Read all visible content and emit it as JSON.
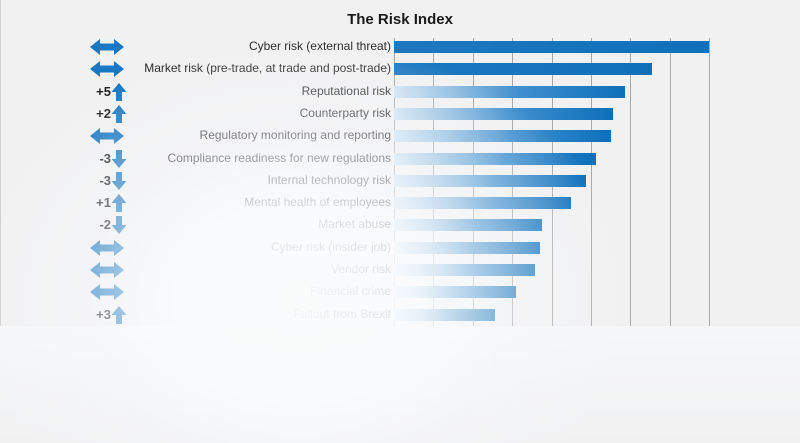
{
  "chart_data": {
    "type": "bar",
    "orientation": "horizontal",
    "title": "The Risk Index",
    "xlabel": "",
    "ylabel": "",
    "xlim": [
      0,
      8
    ],
    "grid": true,
    "gridlines_x": [
      0,
      1,
      2,
      3,
      4,
      5,
      6,
      7,
      8
    ],
    "categories": [
      "Cyber risk (external threat)",
      "Market risk (pre-trade, at trade and post-trade)",
      "Reputational risk",
      "Counterparty risk",
      "Regulatory monitoring and reporting",
      "Compliance readiness for new regulations",
      "Internal technology risk",
      "Mental health of employees",
      "Market abuse",
      "Cyber risk (insider job)",
      "Vendor risk",
      "Financial crime",
      "Fallout from Brexit"
    ],
    "values": [
      8.0,
      6.55,
      5.87,
      5.56,
      5.51,
      5.13,
      4.87,
      4.49,
      3.76,
      3.71,
      3.58,
      3.1,
      2.56
    ],
    "rank_change": [
      "0",
      "0",
      "+5",
      "+2",
      "0",
      "-3",
      "-3",
      "+1",
      "-2",
      "0",
      "0",
      "0",
      "+3"
    ],
    "annotations": "Left column shows rank movement: double-headed arrow = unchanged, up arrow = moved up, down arrow = moved down"
  },
  "chart": {
    "title": "The Risk Index",
    "rows": [
      {
        "label": "Cyber risk (external threat)",
        "change": "",
        "dir": "same",
        "value": 8.0
      },
      {
        "label": "Market risk (pre-trade, at trade and post-trade)",
        "change": "",
        "dir": "same",
        "value": 6.55
      },
      {
        "label": "Reputational risk",
        "change": "+5",
        "dir": "up",
        "value": 5.87
      },
      {
        "label": "Counterparty risk",
        "change": "+2",
        "dir": "up",
        "value": 5.56
      },
      {
        "label": "Regulatory monitoring and reporting",
        "change": "",
        "dir": "same",
        "value": 5.51
      },
      {
        "label": "Compliance readiness for new regulations",
        "change": "-3",
        "dir": "down",
        "value": 5.13
      },
      {
        "label": "Internal technology risk",
        "change": "-3",
        "dir": "down",
        "value": 4.87
      },
      {
        "label": "Mental health of employees",
        "change": "+1",
        "dir": "up",
        "value": 4.49
      },
      {
        "label": "Market abuse",
        "change": "-2",
        "dir": "down",
        "value": 3.76
      },
      {
        "label": "Cyber risk (insider job)",
        "change": "",
        "dir": "same",
        "value": 3.71
      },
      {
        "label": "Vendor risk",
        "change": "",
        "dir": "same",
        "value": 3.58
      },
      {
        "label": "Financial crime",
        "change": "",
        "dir": "same",
        "value": 3.1
      },
      {
        "label": "Fallout from Brexit",
        "change": "+3",
        "dir": "up",
        "value": 2.56
      }
    ]
  },
  "colors": {
    "bar_dark": "#0d6fba",
    "bar_light": "#cfe3f3",
    "arrow": "#1a78c2",
    "gridline": "#a8a8ab",
    "background": "#f1f1f2"
  }
}
